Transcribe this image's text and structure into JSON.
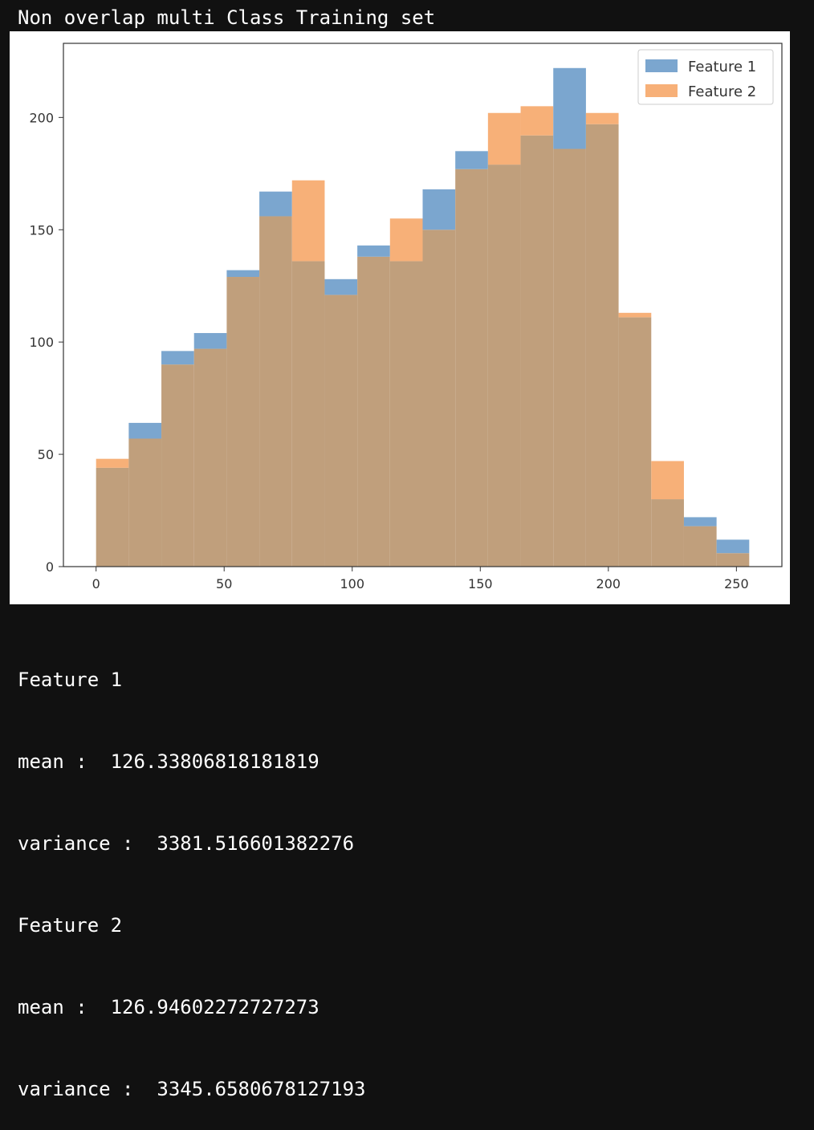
{
  "title": "Non overlap multi Class Training set",
  "chart_data": {
    "type": "histogram",
    "bin_edges": [
      0,
      12.75,
      25.5,
      38.25,
      51,
      63.75,
      76.5,
      89.25,
      102,
      114.75,
      127.5,
      140.25,
      153,
      165.75,
      178.5,
      191.25,
      204,
      216.75,
      229.5,
      242.25,
      255
    ],
    "series": [
      {
        "name": "Feature 1",
        "color": "#7ba6cf",
        "values": [
          44,
          64,
          96,
          104,
          132,
          167,
          136,
          128,
          143,
          136,
          168,
          185,
          179,
          192,
          222,
          197,
          111,
          30,
          22,
          12
        ]
      },
      {
        "name": "Feature 2",
        "color": "#f7b078",
        "values": [
          48,
          57,
          90,
          97,
          129,
          156,
          172,
          121,
          138,
          155,
          150,
          177,
          202,
          205,
          186,
          202,
          113,
          47,
          18,
          6
        ]
      }
    ],
    "overlap_color": "#c09f7c",
    "xlim": [
      -12.75,
      267.75
    ],
    "ylim": [
      0,
      233
    ],
    "xticks": [
      0,
      50,
      100,
      150,
      200,
      250
    ],
    "yticks": [
      0,
      50,
      100,
      150,
      200
    ],
    "legend": "top-right",
    "grid": false
  },
  "stats": {
    "feature1_label": "Feature 1",
    "feature1_mean": "mean :  126.33806818181819",
    "feature1_variance": "variance :  3381.516601382276",
    "feature2_label": "Feature 2",
    "feature2_mean": "mean :  126.94602272727273",
    "feature2_variance": "variance :  3345.6580678127193"
  }
}
